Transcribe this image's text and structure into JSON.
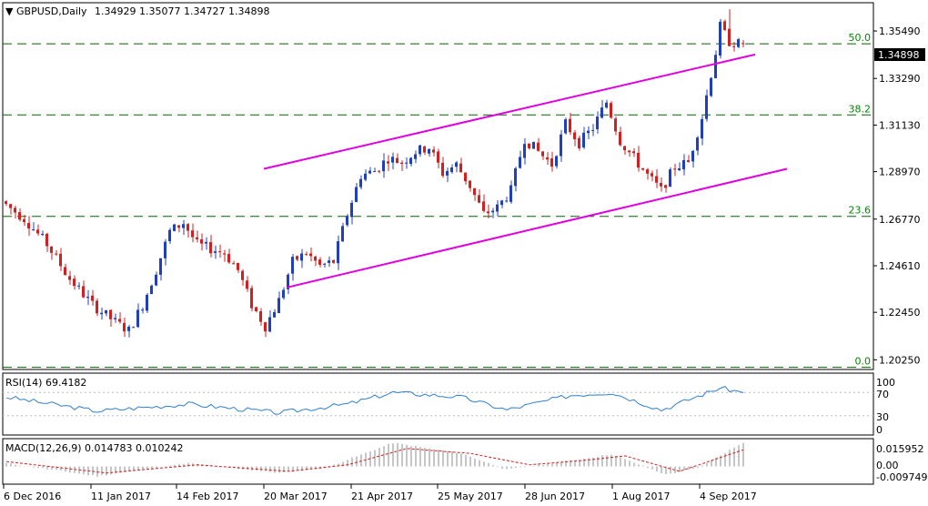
{
  "header": {
    "symbol": "GBPUSD,Daily",
    "ohlc": "1.34929 1.35077 1.34727 1.34898"
  },
  "price_badge": "1.34898",
  "panels": {
    "rsi": {
      "label": "RSI(14) 69.4182",
      "levels": [
        "100",
        "70",
        "30",
        "0"
      ]
    },
    "macd": {
      "label": "MACD(12,26,9) 0.014783 0.010242",
      "ticks": [
        "0.015952",
        "0.00",
        "-0.009749"
      ]
    }
  },
  "colors": {
    "bull": "#1f3fbf",
    "bear": "#d21f1f",
    "channel": "#e000e0",
    "fib": "#006600",
    "fib_label": "#008800",
    "rsi": "#2f7fd2",
    "macd_hist": "#a0a0a0",
    "macd_signal": "#d21f1f",
    "grid": "#000000"
  },
  "chart_data": [
    {
      "type": "candlestick",
      "symbol": "GBPUSD",
      "timeframe": "Daily",
      "last": {
        "open": 1.34929,
        "high": 1.35077,
        "low": 1.34727,
        "close": 1.34898
      },
      "ylim": [
        1.198,
        1.368
      ],
      "y_ticks": [
        "1.35490",
        "1.33290",
        "1.31130",
        "1.28970",
        "1.26770",
        "1.24610",
        "1.22450",
        "1.20250"
      ],
      "x_ticks": [
        "6 Dec 2016",
        "11 Jan 2017",
        "14 Feb 2017",
        "20 Mar 2017",
        "21 Apr 2017",
        "25 May 2017",
        "28 Jun 2017",
        "1 Aug 2017",
        "4 Sep 2017"
      ],
      "price_path": [
        [
          0,
          1.276
        ],
        [
          5,
          1.268
        ],
        [
          10,
          1.256
        ],
        [
          15,
          1.24
        ],
        [
          20,
          1.228
        ],
        [
          25,
          1.22
        ],
        [
          28,
          1.216
        ],
        [
          31,
          1.228
        ],
        [
          34,
          1.244
        ],
        [
          37,
          1.262
        ],
        [
          40,
          1.266
        ],
        [
          43,
          1.256
        ],
        [
          46,
          1.254
        ],
        [
          49,
          1.252
        ],
        [
          52,
          1.244
        ],
        [
          55,
          1.228
        ],
        [
          58,
          1.218
        ],
        [
          61,
          1.23
        ],
        [
          64,
          1.248
        ],
        [
          67,
          1.252
        ],
        [
          70,
          1.246
        ],
        [
          73,
          1.248
        ],
        [
          76,
          1.27
        ],
        [
          79,
          1.288
        ],
        [
          82,
          1.29
        ],
        [
          85,
          1.296
        ],
        [
          88,
          1.294
        ],
        [
          91,
          1.299
        ],
        [
          94,
          1.301
        ],
        [
          97,
          1.289
        ],
        [
          100,
          1.293
        ],
        [
          103,
          1.283
        ],
        [
          106,
          1.27
        ],
        [
          109,
          1.273
        ],
        [
          112,
          1.281
        ],
        [
          115,
          1.305
        ],
        [
          118,
          1.299
        ],
        [
          121,
          1.293
        ],
        [
          124,
          1.312
        ],
        [
          127,
          1.303
        ],
        [
          130,
          1.31
        ],
        [
          133,
          1.322
        ],
        [
          136,
          1.304
        ],
        [
          139,
          1.296
        ],
        [
          142,
          1.288
        ],
        [
          145,
          1.281
        ],
        [
          148,
          1.292
        ],
        [
          151,
          1.294
        ],
        [
          154,
          1.315
        ],
        [
          157,
          1.345
        ],
        [
          158,
          1.357
        ],
        [
          160,
          1.35
        ],
        [
          162,
          1.349
        ]
      ],
      "last_index": 162,
      "rsi_path": [
        [
          0,
          62
        ],
        [
          20,
          38
        ],
        [
          40,
          50
        ],
        [
          60,
          35
        ],
        [
          75,
          50
        ],
        [
          85,
          70
        ],
        [
          100,
          62
        ],
        [
          110,
          40
        ],
        [
          124,
          65
        ],
        [
          133,
          70
        ],
        [
          144,
          40
        ],
        [
          157,
          78
        ],
        [
          162,
          69.4
        ]
      ],
      "macd_path": [
        [
          0,
          0.002
        ],
        [
          20,
          -0.006
        ],
        [
          40,
          0.002
        ],
        [
          60,
          -0.004
        ],
        [
          70,
          -0.001
        ],
        [
          85,
          0.0145
        ],
        [
          100,
          0.008
        ],
        [
          110,
          -0.002
        ],
        [
          125,
          0.004
        ],
        [
          133,
          0.0075
        ],
        [
          145,
          -0.005
        ],
        [
          152,
          -0.001
        ],
        [
          162,
          0.0148
        ]
      ],
      "macd_signal_path": [
        [
          0,
          0.003
        ],
        [
          22,
          -0.004
        ],
        [
          42,
          0.001
        ],
        [
          62,
          -0.003
        ],
        [
          75,
          0.001
        ],
        [
          88,
          0.011
        ],
        [
          102,
          0.008
        ],
        [
          115,
          0.001
        ],
        [
          128,
          0.004
        ],
        [
          136,
          0.0065
        ],
        [
          148,
          -0.003
        ],
        [
          162,
          0.0102
        ]
      ],
      "channel": {
        "upper": [
          [
            57,
            1.291
          ],
          [
            165,
            1.344
          ]
        ],
        "lower": [
          [
            62,
            1.236
          ],
          [
            172,
            1.291
          ]
        ]
      },
      "fib_levels": [
        {
          "label": "50.0",
          "price": 1.34898
        },
        {
          "label": "38.2",
          "price": 1.316
        },
        {
          "label": "23.6",
          "price": 1.269
        },
        {
          "label": "0.0",
          "price": 1.199
        }
      ]
    }
  ]
}
